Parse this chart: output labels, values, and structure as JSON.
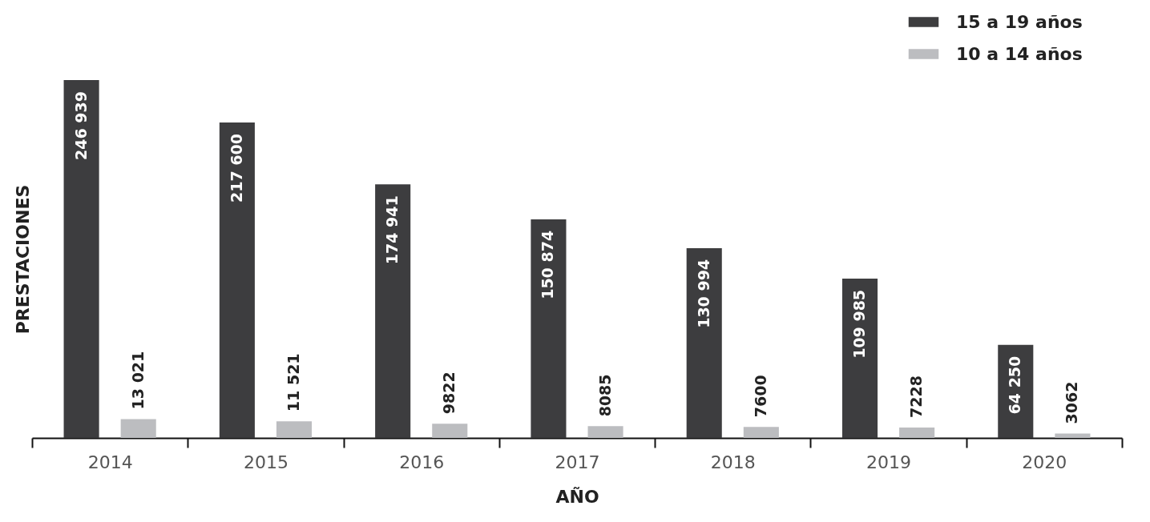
{
  "chart_data": {
    "type": "bar",
    "xlabel": "AÑO",
    "ylabel": "PRESTACIONES",
    "categories": [
      "2014",
      "2015",
      "2016",
      "2017",
      "2018",
      "2019",
      "2020"
    ],
    "legend": "top right",
    "series": [
      {
        "name": "15 a 19 años",
        "color": "#3d3d3f",
        "values": [
          246939,
          217600,
          174941,
          150874,
          130994,
          109985,
          64250
        ],
        "value_labels": [
          "246 939",
          "217 600",
          "174 941",
          "150 874",
          "130 994",
          "109 985",
          "64 250"
        ]
      },
      {
        "name": "10 a 14 años",
        "color": "#bcbdc0",
        "values": [
          13021,
          11521,
          9822,
          8085,
          7600,
          7228,
          3062
        ],
        "value_labels": [
          "13 021",
          "11 521",
          "9822",
          "8085",
          "7600",
          "7228",
          "3062"
        ]
      }
    ]
  }
}
